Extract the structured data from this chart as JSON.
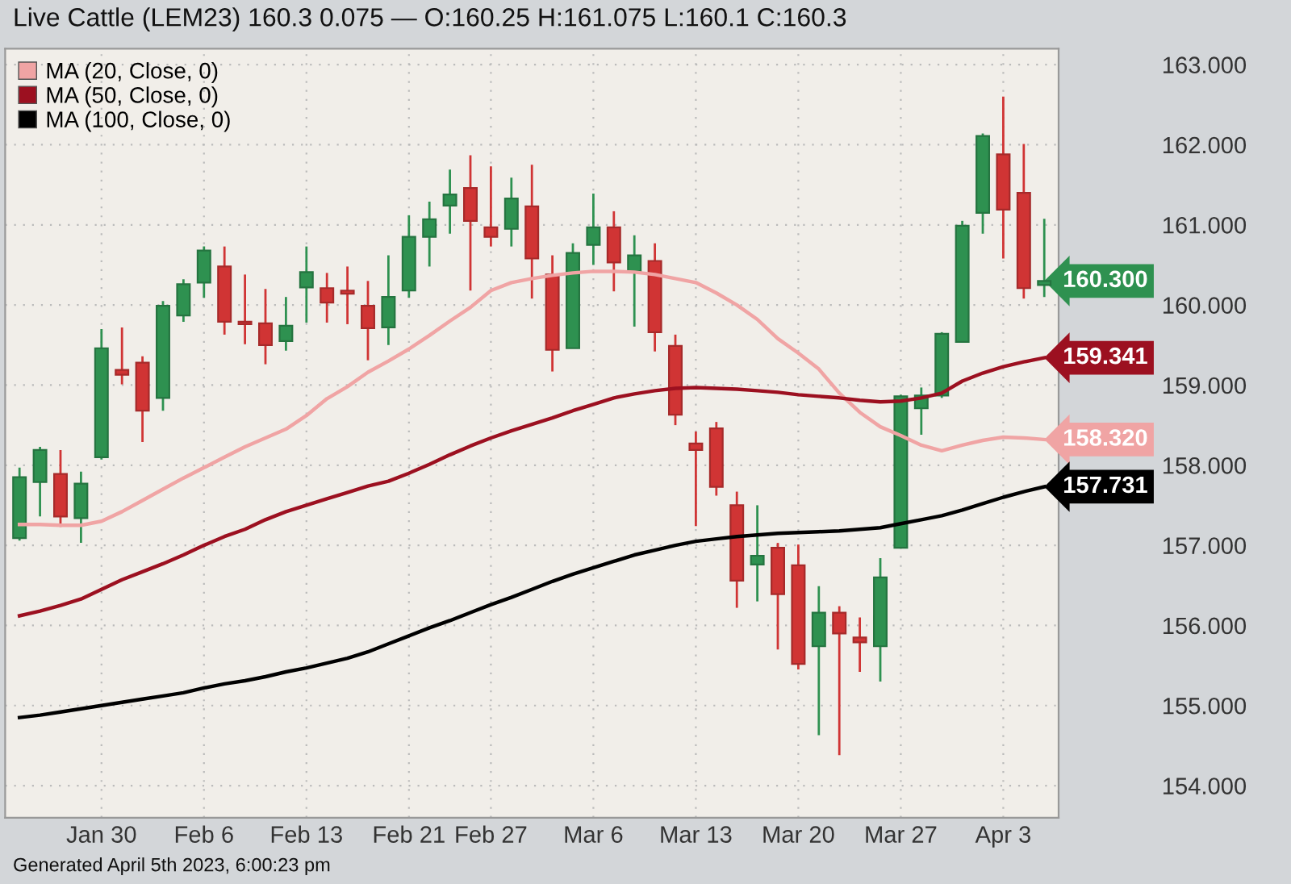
{
  "chart_data": {
    "type": "candlestick",
    "title": "Live Cattle (LEM23) 160.3 0.075 — O:160.25 H:161.075 L:160.1 C:160.3",
    "categories": [
      null,
      null,
      null,
      null,
      "Jan 30",
      null,
      null,
      null,
      null,
      "Feb 6",
      null,
      null,
      null,
      null,
      "Feb 13",
      null,
      null,
      null,
      null,
      "Feb 21",
      null,
      null,
      null,
      "Feb 27",
      null,
      null,
      null,
      null,
      "Mar 6",
      null,
      null,
      null,
      null,
      "Mar 13",
      null,
      null,
      null,
      null,
      "Mar 20",
      null,
      null,
      null,
      null,
      "Mar 27",
      null,
      null,
      null,
      null,
      "Apr 3",
      null,
      null
    ],
    "ohlc": [
      [
        157.09,
        157.97,
        157.06,
        157.85
      ],
      [
        157.79,
        158.23,
        157.36,
        158.19
      ],
      [
        157.89,
        158.19,
        157.23,
        157.36
      ],
      [
        157.34,
        157.92,
        157.03,
        157.77
      ],
      [
        158.1,
        159.7,
        158.07,
        159.46
      ],
      [
        159.19,
        159.72,
        159.01,
        159.13
      ],
      [
        159.28,
        159.36,
        158.29,
        158.68
      ],
      [
        158.84,
        160.05,
        158.68,
        159.99
      ],
      [
        159.87,
        160.32,
        159.79,
        160.26
      ],
      [
        160.28,
        160.73,
        160.09,
        160.68
      ],
      [
        160.48,
        160.73,
        159.63,
        159.79
      ],
      [
        159.79,
        160.38,
        159.51,
        159.76
      ],
      [
        159.77,
        160.2,
        159.26,
        159.5
      ],
      [
        159.55,
        160.1,
        159.43,
        159.74
      ],
      [
        160.22,
        160.73,
        159.78,
        160.41
      ],
      [
        160.21,
        160.4,
        159.78,
        160.03
      ],
      [
        160.18,
        160.48,
        159.76,
        160.14
      ],
      [
        159.99,
        160.3,
        159.31,
        159.71
      ],
      [
        159.72,
        160.62,
        159.5,
        160.1
      ],
      [
        160.18,
        161.12,
        160.09,
        160.85
      ],
      [
        160.85,
        161.29,
        160.48,
        161.07
      ],
      [
        161.24,
        161.69,
        160.89,
        161.38
      ],
      [
        161.46,
        161.87,
        160.18,
        161.05
      ],
      [
        160.97,
        161.73,
        160.73,
        160.85
      ],
      [
        160.95,
        161.59,
        160.73,
        161.33
      ],
      [
        161.23,
        161.75,
        160.08,
        160.58
      ],
      [
        160.38,
        160.62,
        159.17,
        159.44
      ],
      [
        159.46,
        160.77,
        159.46,
        160.65
      ],
      [
        160.75,
        161.39,
        160.5,
        160.97
      ],
      [
        160.97,
        161.17,
        160.17,
        160.53
      ],
      [
        160.42,
        160.87,
        159.73,
        160.62
      ],
      [
        160.55,
        160.77,
        159.42,
        159.66
      ],
      [
        159.49,
        159.63,
        158.5,
        158.63
      ],
      [
        158.27,
        158.42,
        157.24,
        158.19
      ],
      [
        158.46,
        158.54,
        157.62,
        157.73
      ],
      [
        157.5,
        157.67,
        156.22,
        156.56
      ],
      [
        156.76,
        157.5,
        156.3,
        156.87
      ],
      [
        156.97,
        157.03,
        155.7,
        156.39
      ],
      [
        156.75,
        157.01,
        155.45,
        155.52
      ],
      [
        155.74,
        156.49,
        154.63,
        156.16
      ],
      [
        156.16,
        156.24,
        154.38,
        155.9
      ],
      [
        155.85,
        156.1,
        155.42,
        155.79
      ],
      [
        155.74,
        156.84,
        155.3,
        156.6
      ],
      [
        156.97,
        158.88,
        156.96,
        158.86
      ],
      [
        158.71,
        158.97,
        158.38,
        158.87
      ],
      [
        158.87,
        159.66,
        158.84,
        159.64
      ],
      [
        159.54,
        161.05,
        159.54,
        160.99
      ],
      [
        161.15,
        162.14,
        160.89,
        162.11
      ],
      [
        161.88,
        162.6,
        160.58,
        161.19
      ],
      [
        161.4,
        162.01,
        160.08,
        160.21
      ],
      [
        160.25,
        161.075,
        160.1,
        160.3
      ]
    ],
    "colors": [
      "#2e9150",
      "#2e9150",
      "#d03434",
      "#2e9150",
      "#2e9150",
      "#d03434",
      "#d03434",
      "#2e9150",
      "#2e9150",
      "#2e9150",
      "#d03434",
      "#d03434",
      "#d03434",
      "#2e9150",
      "#2e9150",
      "#d03434",
      "#d03434",
      "#d03434",
      "#2e9150",
      "#2e9150",
      "#2e9150",
      "#2e9150",
      "#d03434",
      "#d03434",
      "#2e9150",
      "#d03434",
      "#d03434",
      "#2e9150",
      "#2e9150",
      "#d03434",
      "#2e9150",
      "#d03434",
      "#d03434",
      "#d03434",
      "#d03434",
      "#d03434",
      "#2e9150",
      "#d03434",
      "#d03434",
      "#2e9150",
      "#d03434",
      "#d03434",
      "#2e9150",
      "#2e9150",
      "#2e9150",
      "#2e9150",
      "#2e9150",
      "#2e9150",
      "#d03434",
      "#d03434",
      "#2e9150"
    ],
    "series": [
      {
        "name": "MA (20, Close, 0)",
        "type": "line",
        "color": "#f0a4a4",
        "values": [
          157.26,
          157.26,
          157.25,
          157.25,
          157.3,
          157.42,
          157.56,
          157.7,
          157.84,
          157.97,
          158.1,
          158.23,
          158.34,
          158.45,
          158.62,
          158.83,
          158.98,
          159.16,
          159.3,
          159.45,
          159.62,
          159.8,
          159.97,
          160.18,
          160.28,
          160.33,
          160.37,
          160.4,
          160.42,
          160.42,
          160.41,
          160.38,
          160.33,
          160.28,
          160.15,
          160.0,
          159.82,
          159.58,
          159.4,
          159.2,
          158.9,
          158.66,
          158.48,
          158.37,
          158.25,
          158.18,
          158.25,
          158.31,
          158.35,
          158.34,
          158.32
        ],
        "value_labels": [
          null,
          null,
          null,
          null,
          null,
          null,
          null,
          null,
          null,
          null,
          null,
          null,
          null,
          null,
          null,
          null,
          null,
          null,
          null,
          null,
          null,
          null,
          null,
          null,
          null,
          null,
          null,
          null,
          null,
          null,
          null,
          null,
          null,
          null,
          null,
          null,
          null,
          null,
          null,
          null,
          null,
          null,
          null,
          null,
          null,
          null,
          null,
          null,
          null,
          null,
          "158.320"
        ]
      },
      {
        "name": "MA (50, Close, 0)",
        "type": "line",
        "color": "#9c1020",
        "values": [
          156.12,
          156.18,
          156.25,
          156.33,
          156.45,
          156.57,
          156.67,
          156.77,
          156.88,
          157.0,
          157.11,
          157.2,
          157.32,
          157.42,
          157.5,
          157.58,
          157.66,
          157.74,
          157.8,
          157.9,
          158.01,
          158.13,
          158.24,
          158.34,
          158.43,
          158.51,
          158.59,
          158.68,
          158.76,
          158.84,
          158.89,
          158.93,
          158.96,
          158.97,
          158.96,
          158.95,
          158.93,
          158.91,
          158.88,
          158.86,
          158.84,
          158.81,
          158.79,
          158.8,
          158.84,
          158.9,
          159.05,
          159.15,
          159.23,
          159.29,
          159.341
        ],
        "value_labels": [
          null,
          null,
          null,
          null,
          null,
          null,
          null,
          null,
          null,
          null,
          null,
          null,
          null,
          null,
          null,
          null,
          null,
          null,
          null,
          null,
          null,
          null,
          null,
          null,
          null,
          null,
          null,
          null,
          null,
          null,
          null,
          null,
          null,
          null,
          null,
          null,
          null,
          null,
          null,
          null,
          null,
          null,
          null,
          null,
          null,
          null,
          null,
          null,
          null,
          null,
          "159.341"
        ]
      },
      {
        "name": "MA (100, Close, 0)",
        "type": "line",
        "color": "#000000",
        "values": [
          154.85,
          154.88,
          154.92,
          154.96,
          155.0,
          155.04,
          155.08,
          155.12,
          155.16,
          155.22,
          155.27,
          155.31,
          155.36,
          155.42,
          155.47,
          155.53,
          155.59,
          155.67,
          155.77,
          155.87,
          155.97,
          156.06,
          156.16,
          156.26,
          156.35,
          156.45,
          156.55,
          156.64,
          156.72,
          156.8,
          156.88,
          156.94,
          157.0,
          157.05,
          157.08,
          157.11,
          157.13,
          157.15,
          157.16,
          157.17,
          157.18,
          157.2,
          157.22,
          157.27,
          157.32,
          157.37,
          157.44,
          157.52,
          157.6,
          157.67,
          157.731
        ],
        "value_labels": [
          null,
          null,
          null,
          null,
          null,
          null,
          null,
          null,
          null,
          null,
          null,
          null,
          null,
          null,
          null,
          null,
          null,
          null,
          null,
          null,
          null,
          null,
          null,
          null,
          null,
          null,
          null,
          null,
          null,
          null,
          null,
          null,
          null,
          null,
          null,
          null,
          null,
          null,
          null,
          null,
          null,
          null,
          null,
          null,
          null,
          null,
          null,
          null,
          null,
          null,
          "157.731"
        ]
      }
    ],
    "ylim": [
      153.6,
      163.2
    ],
    "yticks": [
      {
        "value": 154,
        "label": "154.000"
      },
      {
        "value": 155,
        "label": "155.000"
      },
      {
        "value": 156,
        "label": "156.000"
      },
      {
        "value": 157,
        "label": "157.000"
      },
      {
        "value": 158,
        "label": "158.000"
      },
      {
        "value": 159,
        "label": "159.000"
      },
      {
        "value": 160,
        "label": "160.000"
      },
      {
        "value": 161,
        "label": "161.000"
      },
      {
        "value": 162,
        "label": "162.000"
      },
      {
        "value": 163,
        "label": "163.000"
      }
    ],
    "grid": true,
    "legend": "top left",
    "annotations": [
      "Generated April 5th 2023, 6:00:23 pm",
      "160.300"
    ]
  }
}
